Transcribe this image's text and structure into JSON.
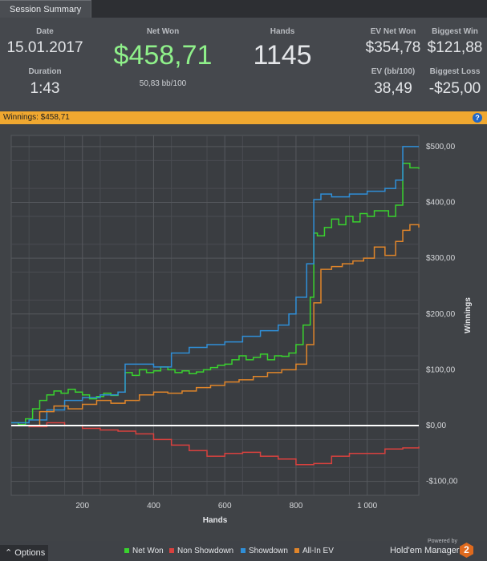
{
  "tab": {
    "label": "Session Summary"
  },
  "summary": {
    "date_label": "Date",
    "date_value": "15.01.2017",
    "duration_label": "Duration",
    "duration_value": "1:43",
    "net_won_label": "Net Won",
    "net_won_value": "$458,71",
    "net_won_sub": "50,83 bb/100",
    "hands_label": "Hands",
    "hands_value": "1145",
    "ev_net_won_label": "EV Net Won",
    "ev_net_won_value": "$354,78",
    "biggest_win_label": "Biggest Win",
    "biggest_win_value": "$121,88",
    "ev_bb_label": "EV (bb/100)",
    "ev_bb_value": "38,49",
    "biggest_loss_label": "Biggest Loss",
    "biggest_loss_value": "-$25,00"
  },
  "winnings_bar": {
    "text": "Winnings: $458,71",
    "help": "?"
  },
  "chart_data": {
    "type": "line",
    "title": "",
    "xlabel": "Hands",
    "ylabel": "Winnings",
    "xlim": [
      0,
      1145
    ],
    "ylim": [
      -125,
      520
    ],
    "x_ticks": [
      200,
      400,
      600,
      800,
      1000
    ],
    "x_tick_labels": [
      "200",
      "400",
      "600",
      "800",
      "1 000"
    ],
    "y_ticks": [
      -100,
      0,
      100,
      200,
      300,
      400,
      500
    ],
    "y_tick_labels": [
      "-$100,00",
      "$0,00",
      "$100,00",
      "$200,00",
      "$300,00",
      "$400,00",
      "$500,00"
    ],
    "series": [
      {
        "name": "Net Won",
        "color": "#39d22e",
        "x": [
          0,
          20,
          40,
          60,
          80,
          100,
          120,
          140,
          160,
          180,
          200,
          220,
          240,
          260,
          280,
          300,
          320,
          340,
          360,
          380,
          400,
          420,
          440,
          460,
          480,
          500,
          520,
          540,
          560,
          580,
          600,
          620,
          640,
          660,
          680,
          700,
          720,
          740,
          760,
          780,
          800,
          820,
          840,
          850,
          860,
          880,
          900,
          920,
          940,
          960,
          980,
          1000,
          1020,
          1040,
          1060,
          1080,
          1100,
          1120,
          1145
        ],
        "y": [
          5,
          2,
          12,
          30,
          45,
          55,
          62,
          58,
          65,
          60,
          55,
          48,
          52,
          58,
          54,
          60,
          95,
          90,
          100,
          95,
          98,
          105,
          100,
          95,
          98,
          93,
          96,
          100,
          104,
          108,
          110,
          118,
          125,
          118,
          122,
          128,
          118,
          125,
          124,
          130,
          145,
          180,
          230,
          345,
          340,
          355,
          370,
          360,
          375,
          365,
          380,
          375,
          385,
          385,
          375,
          395,
          470,
          462,
          460
        ]
      },
      {
        "name": "Non Showdown",
        "color": "#d9413e",
        "x": [
          0,
          50,
          100,
          150,
          200,
          250,
          300,
          350,
          400,
          450,
          500,
          550,
          600,
          650,
          700,
          750,
          800,
          850,
          900,
          950,
          1000,
          1050,
          1100,
          1145
        ],
        "y": [
          0,
          -2,
          5,
          0,
          -5,
          -8,
          -10,
          -15,
          -25,
          -35,
          -45,
          -55,
          -50,
          -48,
          -55,
          -60,
          -70,
          -68,
          -55,
          -50,
          -50,
          -42,
          -40,
          -38
        ]
      },
      {
        "name": "Showdown",
        "color": "#2f8fd8",
        "x": [
          0,
          50,
          100,
          150,
          200,
          250,
          300,
          320,
          350,
          400,
          450,
          500,
          550,
          600,
          650,
          700,
          750,
          780,
          800,
          830,
          850,
          870,
          900,
          950,
          1000,
          1050,
          1080,
          1100,
          1120,
          1145
        ],
        "y": [
          5,
          10,
          28,
          45,
          50,
          55,
          60,
          110,
          110,
          105,
          130,
          140,
          145,
          150,
          160,
          170,
          180,
          200,
          230,
          290,
          405,
          415,
          410,
          415,
          420,
          425,
          440,
          500,
          500,
          500
        ]
      },
      {
        "name": "All-In EV",
        "color": "#e0852a",
        "x": [
          0,
          40,
          80,
          120,
          160,
          200,
          240,
          280,
          320,
          360,
          400,
          440,
          480,
          520,
          560,
          600,
          640,
          680,
          720,
          760,
          800,
          830,
          850,
          870,
          900,
          930,
          960,
          990,
          1020,
          1050,
          1080,
          1100,
          1120,
          1145
        ],
        "y": [
          0,
          0,
          25,
          35,
          30,
          38,
          45,
          40,
          45,
          55,
          60,
          58,
          62,
          68,
          72,
          78,
          82,
          88,
          95,
          100,
          110,
          145,
          220,
          280,
          285,
          290,
          295,
          300,
          320,
          305,
          330,
          350,
          360,
          355
        ]
      }
    ]
  },
  "options": {
    "label": "Options"
  },
  "branding": {
    "powered_by": "Powered by",
    "product": "Hold'em Manager",
    "logo": "2"
  }
}
